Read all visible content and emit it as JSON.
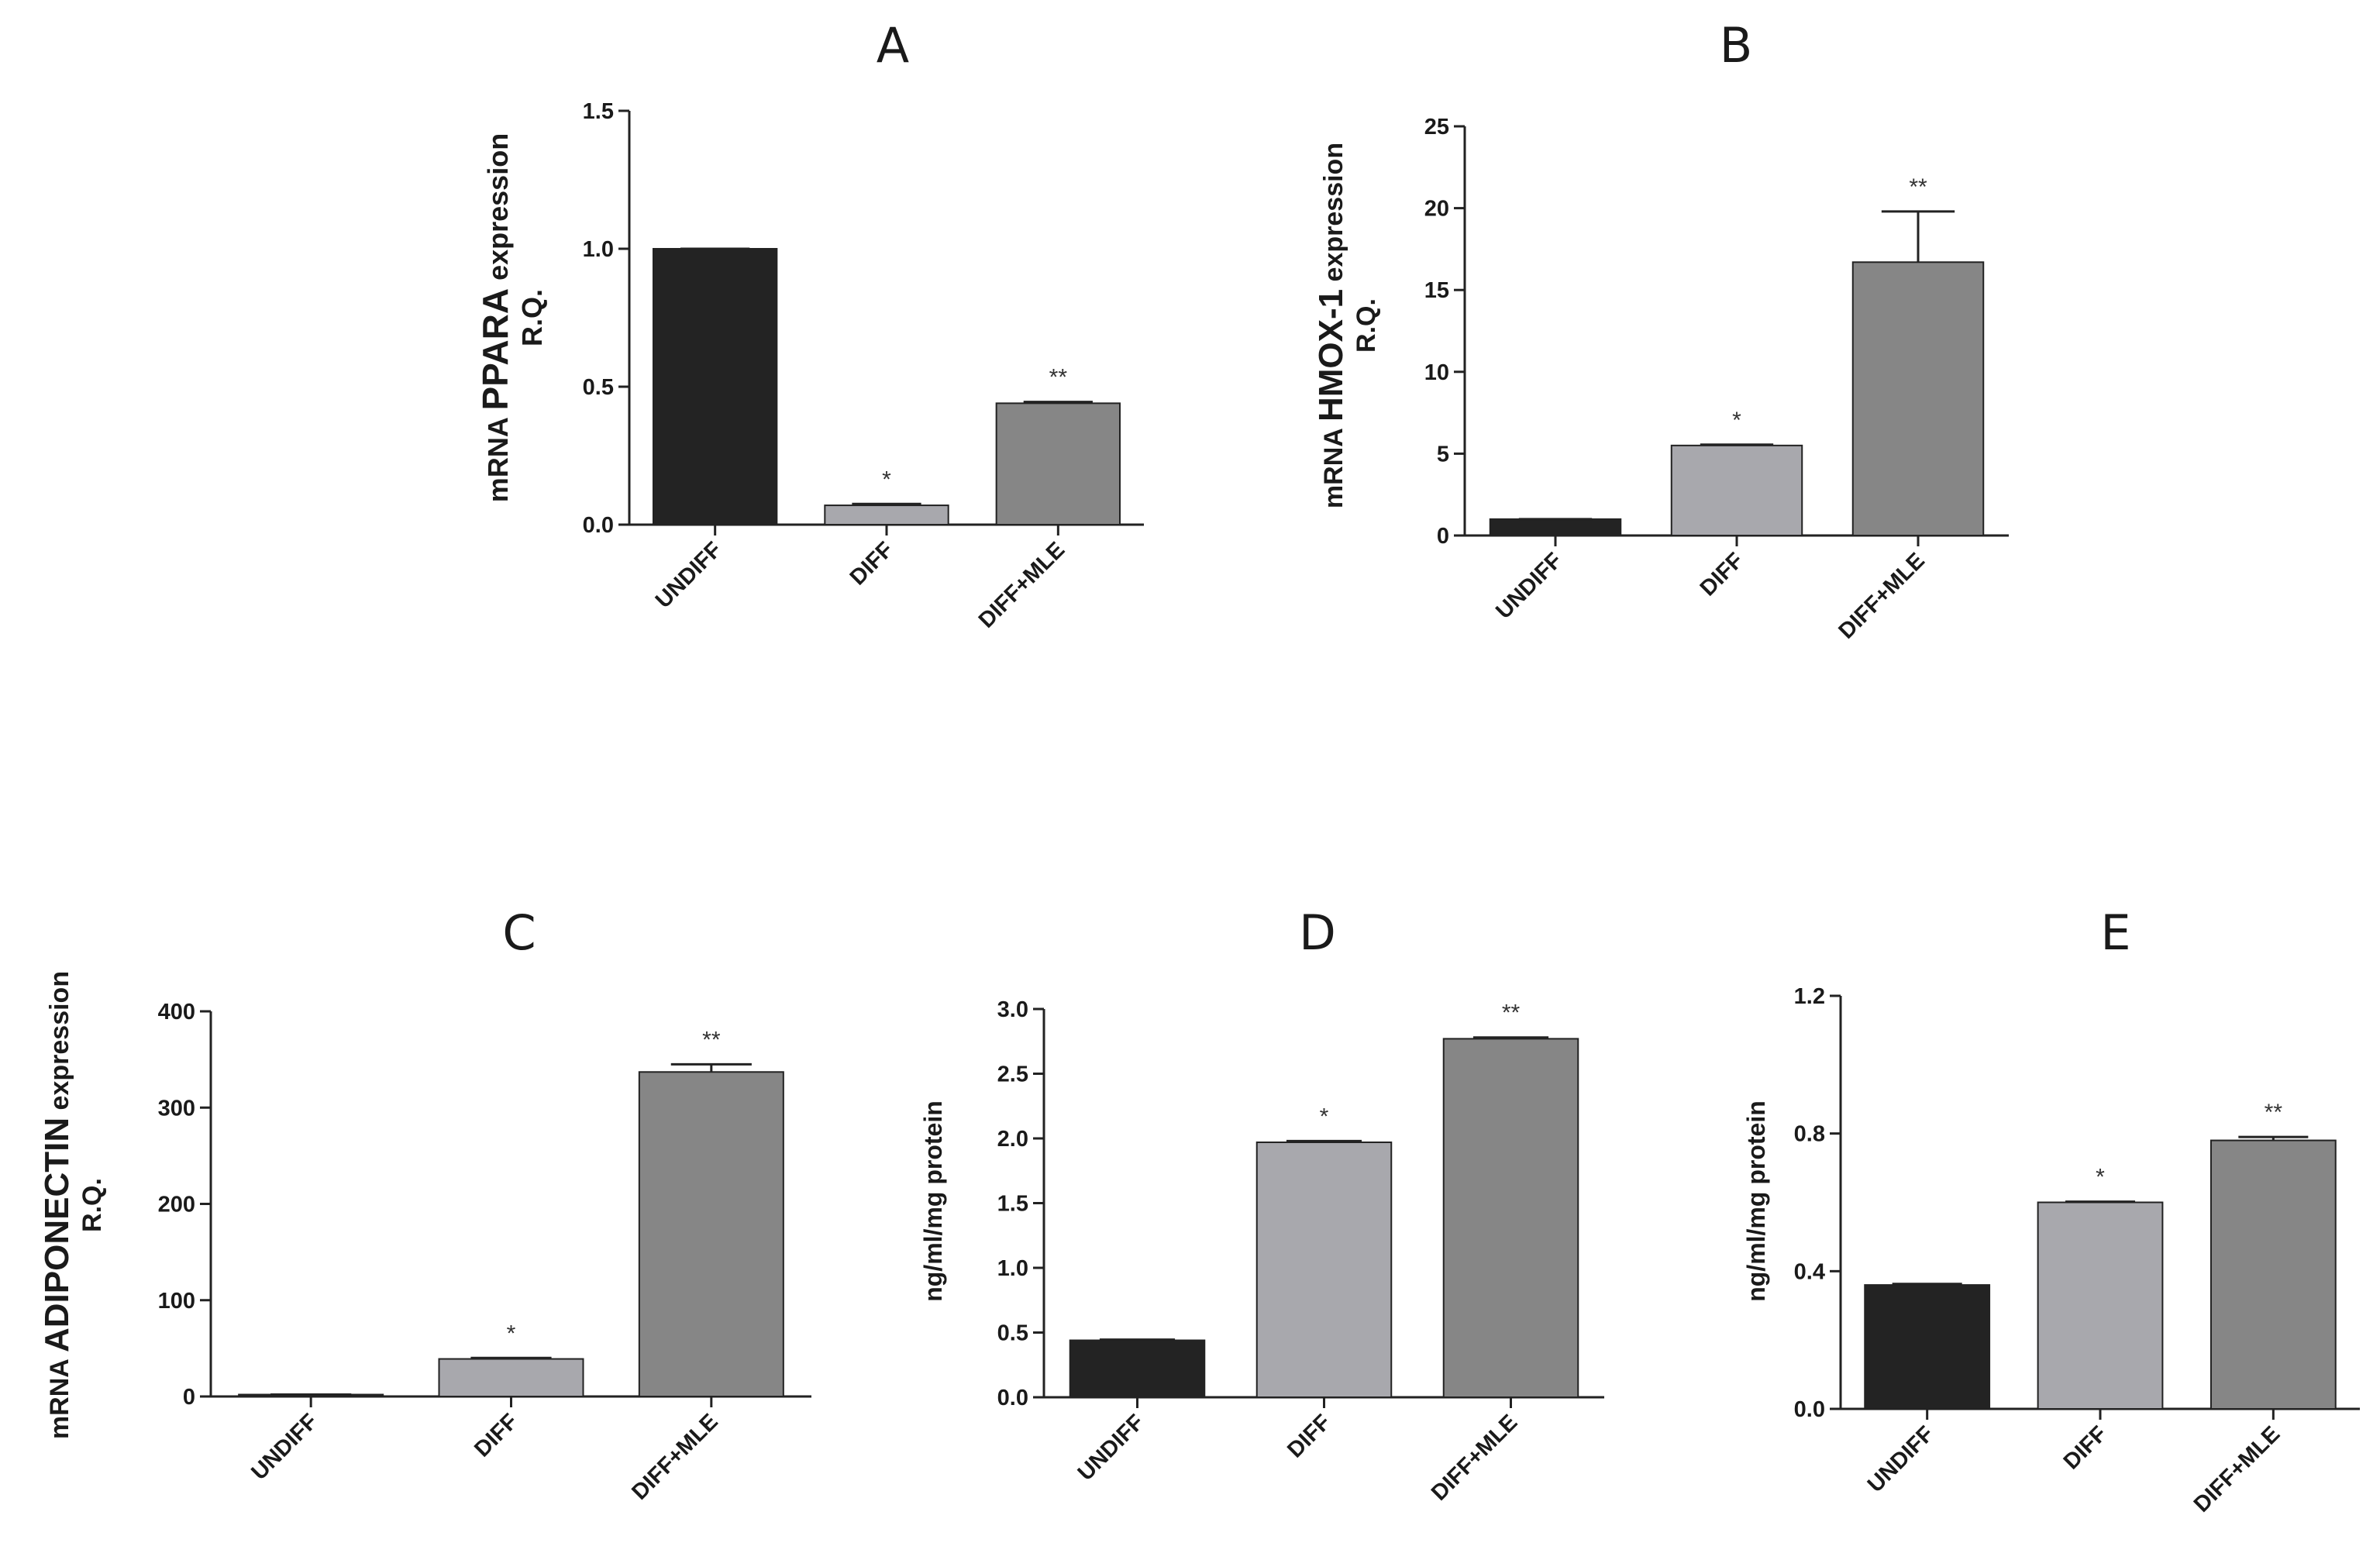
{
  "chart_data": [
    {
      "type": "bar",
      "panel": "A",
      "categories": [
        "UNDIFF",
        "DIFF",
        "DIFF+MLE"
      ],
      "values": [
        1.0,
        0.07,
        0.44
      ],
      "errors": [
        0.0,
        0.005,
        0.005
      ],
      "significance": [
        "",
        "*",
        "**"
      ],
      "colors": [
        "#232323",
        "#a8a8ad",
        "#868686"
      ],
      "ylim": [
        0,
        1.5
      ],
      "yticks": [
        "0.0",
        "0.5",
        "1.0",
        "1.5"
      ],
      "ylabel": {
        "pre": "mRNA ",
        "gene": "PPARA",
        "post": " expression",
        "line2": "R.Q."
      },
      "xlabel": "",
      "grid": false
    },
    {
      "type": "bar",
      "panel": "B",
      "categories": [
        "UNDIFF",
        "DIFF",
        "DIFF+MLE"
      ],
      "values": [
        1.0,
        5.5,
        16.7
      ],
      "errors": [
        0.0,
        0.05,
        3.1
      ],
      "significance": [
        "",
        "*",
        "**"
      ],
      "colors": [
        "#232323",
        "#a8a8ad",
        "#868686"
      ],
      "ylim": [
        0,
        25
      ],
      "yticks": [
        "0",
        "5",
        "10",
        "15",
        "20",
        "25"
      ],
      "ylabel": {
        "pre": "mRNA ",
        "gene": "HMOX-1",
        "post": " expression",
        "line2": "R.Q."
      },
      "xlabel": "",
      "grid": false
    },
    {
      "type": "bar",
      "panel": "C",
      "categories": [
        "UNDIFF",
        "DIFF",
        "DIFF+MLE"
      ],
      "values": [
        2,
        39,
        337
      ],
      "errors": [
        0,
        1,
        8
      ],
      "significance": [
        "",
        "*",
        "**"
      ],
      "colors": [
        "#232323",
        "#a8a8ad",
        "#868686"
      ],
      "ylim": [
        0,
        400
      ],
      "yticks": [
        "0",
        "100",
        "200",
        "300",
        "400"
      ],
      "ylabel": {
        "pre": "mRNA ",
        "gene": "ADIPONECTIN",
        "post": " expression",
        "line2": "R.Q."
      },
      "xlabel": "",
      "grid": false
    },
    {
      "type": "bar",
      "panel": "D",
      "categories": [
        "UNDIFF",
        "DIFF",
        "DIFF+MLE"
      ],
      "values": [
        0.44,
        1.97,
        2.77
      ],
      "errors": [
        0.005,
        0.01,
        0.01
      ],
      "significance": [
        "",
        "*",
        "**"
      ],
      "colors": [
        "#232323",
        "#a8a8ad",
        "#868686"
      ],
      "ylim": [
        0,
        3.0
      ],
      "yticks": [
        "0.0",
        "0.5",
        "1.0",
        "1.5",
        "2.0",
        "2.5",
        "3.0"
      ],
      "ylabel": {
        "pre": "ng/ml/mg protein",
        "gene": "",
        "post": "",
        "line2": ""
      },
      "xlabel": "",
      "grid": false
    },
    {
      "type": "bar",
      "panel": "E",
      "categories": [
        "UNDIFF",
        "DIFF",
        "DIFF+MLE"
      ],
      "values": [
        0.36,
        0.6,
        0.78
      ],
      "errors": [
        0.003,
        0.002,
        0.01
      ],
      "significance": [
        "",
        "*",
        "**"
      ],
      "colors": [
        "#232323",
        "#a8a8ad",
        "#868686"
      ],
      "ylim": [
        0,
        1.2
      ],
      "yticks": [
        "0.0",
        "0.4",
        "0.8",
        "1.2"
      ],
      "ylabel": {
        "pre": "ng/ml/mg protein",
        "gene": "",
        "post": "",
        "line2": ""
      },
      "xlabel": "",
      "grid": false
    }
  ]
}
